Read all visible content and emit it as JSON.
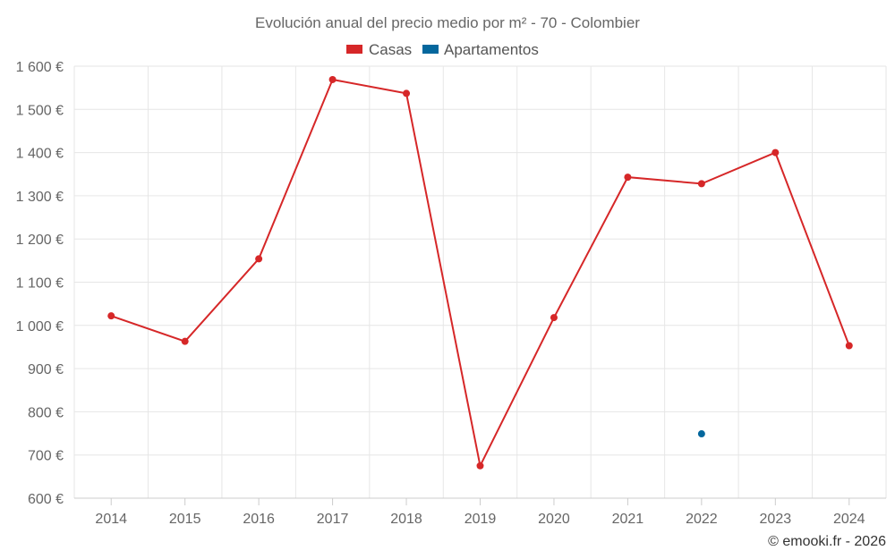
{
  "chart_data": {
    "type": "line",
    "title": "Evolución anual del precio medio por m² - 70 - Colombier",
    "categories": [
      "2014",
      "2015",
      "2016",
      "2017",
      "2018",
      "2019",
      "2020",
      "2021",
      "2022",
      "2023",
      "2024"
    ],
    "series": [
      {
        "name": "Casas",
        "color": "#d62728",
        "values": [
          1022,
          963,
          1154,
          1569,
          1537,
          675,
          1018,
          1343,
          1328,
          1400,
          953
        ]
      },
      {
        "name": "Apartamentos",
        "color": "#04679d",
        "values": [
          null,
          null,
          null,
          null,
          null,
          null,
          null,
          null,
          749,
          null,
          null
        ]
      }
    ],
    "ylim": [
      600,
      1600
    ],
    "yticks": [
      600,
      700,
      800,
      900,
      1000,
      1100,
      1200,
      1300,
      1400,
      1500,
      1600
    ],
    "ytick_labels": [
      "600 €",
      "700 €",
      "800 €",
      "900 €",
      "1 000 €",
      "1 100 €",
      "1 200 €",
      "1 300 €",
      "1 400 €",
      "1 500 €",
      "1 600 €"
    ],
    "xlabel": "",
    "ylabel": "",
    "grid": true,
    "legend": "top-center"
  },
  "credit": "© emooki.fr - 2026"
}
